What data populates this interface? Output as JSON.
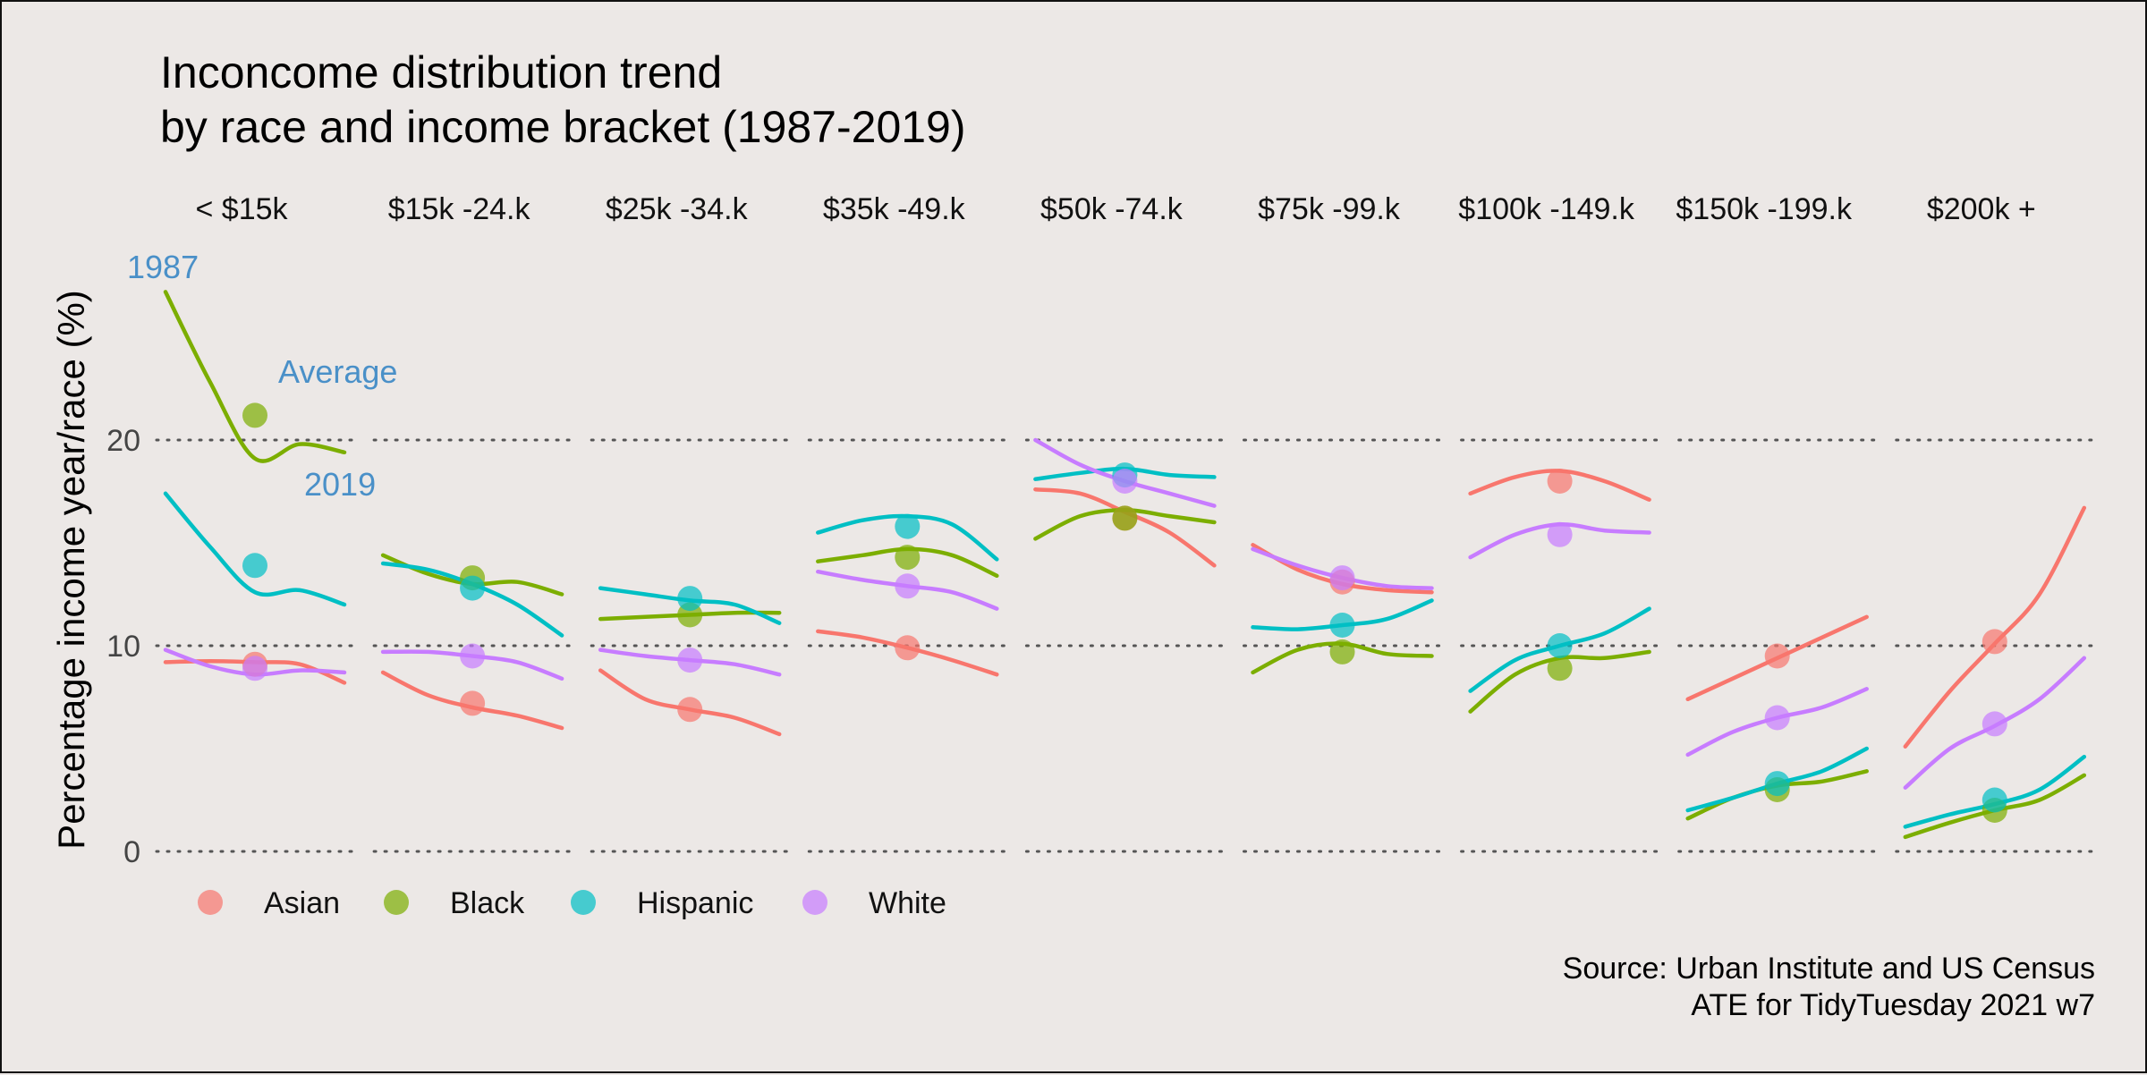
{
  "chart_data": {
    "type": "line",
    "title_line1": "Inconcome distribution trend",
    "title_line2": "by race and income bracket (1987-2019)",
    "ylabel": "Percentage income year/race (%)",
    "ylim": [
      0,
      28
    ],
    "yticks": [
      "0",
      "10",
      "20"
    ],
    "ytick_values": [
      0,
      10,
      20
    ],
    "grid": "dotted horizontal at 0, 10, 20",
    "legend_position": "bottom-left",
    "caption_line1": "Source: Urban Institute and US Census",
    "caption_line2": "ATE for TidyTuesday 2021 w7",
    "annotations": {
      "start": "1987",
      "mean": "Average",
      "end": "2019"
    },
    "x_domain": [
      1987,
      2019
    ],
    "colors": {
      "Asian": "#F8766D",
      "Black": "#7CAE00",
      "Hispanic": "#00BFC4",
      "White": "#C77CFF"
    },
    "series_names": [
      "Asian",
      "Black",
      "Hispanic",
      "White"
    ],
    "facets": [
      {
        "label": "< $15k",
        "series": [
          {
            "name": "Asian",
            "average": 9.1,
            "line": [
              9.2,
              9.25,
              9.2,
              9.1,
              8.2
            ]
          },
          {
            "name": "Black",
            "average": 21.2,
            "line": [
              27.2,
              22.8,
              19.1,
              19.8,
              19.4
            ]
          },
          {
            "name": "Hispanic",
            "average": 13.9,
            "line": [
              17.4,
              14.8,
              12.6,
              12.7,
              12.0
            ]
          },
          {
            "name": "White",
            "average": 8.9,
            "line": [
              9.8,
              9.0,
              8.6,
              8.8,
              8.7
            ]
          }
        ]
      },
      {
        "label": "$15k -24.k",
        "series": [
          {
            "name": "Asian",
            "average": 7.2,
            "line": [
              8.7,
              7.6,
              7.0,
              6.6,
              6.0
            ]
          },
          {
            "name": "Black",
            "average": 13.3,
            "line": [
              14.4,
              13.5,
              13.0,
              13.1,
              12.5
            ]
          },
          {
            "name": "Hispanic",
            "average": 12.8,
            "line": [
              14.0,
              13.7,
              13.0,
              12.0,
              10.5
            ]
          },
          {
            "name": "White",
            "average": 9.5,
            "line": [
              9.7,
              9.7,
              9.5,
              9.2,
              8.4
            ]
          }
        ]
      },
      {
        "label": "$25k -34.k",
        "series": [
          {
            "name": "Asian",
            "average": 6.9,
            "line": [
              8.8,
              7.4,
              6.9,
              6.5,
              5.7
            ]
          },
          {
            "name": "Black",
            "average": 11.5,
            "line": [
              11.3,
              11.4,
              11.5,
              11.6,
              11.6
            ]
          },
          {
            "name": "Hispanic",
            "average": 12.3,
            "line": [
              12.8,
              12.5,
              12.2,
              12.0,
              11.1
            ]
          },
          {
            "name": "White",
            "average": 9.3,
            "line": [
              9.8,
              9.5,
              9.3,
              9.1,
              8.6
            ]
          }
        ]
      },
      {
        "label": "$35k -49.k",
        "series": [
          {
            "name": "Asian",
            "average": 9.9,
            "line": [
              10.7,
              10.4,
              9.9,
              9.3,
              8.6
            ]
          },
          {
            "name": "Black",
            "average": 14.3,
            "line": [
              14.1,
              14.4,
              14.7,
              14.4,
              13.4
            ]
          },
          {
            "name": "Hispanic",
            "average": 15.8,
            "line": [
              15.5,
              16.1,
              16.3,
              15.9,
              14.2
            ]
          },
          {
            "name": "White",
            "average": 12.9,
            "line": [
              13.6,
              13.2,
              12.9,
              12.6,
              11.8
            ]
          }
        ]
      },
      {
        "label": "$50k -74.k",
        "series": [
          {
            "name": "Asian",
            "average": 16.2,
            "line": [
              17.6,
              17.4,
              16.5,
              15.5,
              13.9
            ]
          },
          {
            "name": "Black",
            "average": 16.2,
            "line": [
              15.2,
              16.3,
              16.6,
              16.3,
              16.0
            ]
          },
          {
            "name": "Hispanic",
            "average": 18.3,
            "line": [
              18.1,
              18.4,
              18.6,
              18.3,
              18.2
            ]
          },
          {
            "name": "White",
            "average": 18.0,
            "line": [
              20.0,
              18.8,
              18.0,
              17.4,
              16.8
            ]
          }
        ]
      },
      {
        "label": "$75k -99.k",
        "series": [
          {
            "name": "Asian",
            "average": 13.1,
            "line": [
              14.9,
              13.7,
              13.0,
              12.7,
              12.6
            ]
          },
          {
            "name": "Black",
            "average": 9.7,
            "line": [
              8.7,
              9.8,
              10.1,
              9.6,
              9.5
            ]
          },
          {
            "name": "Hispanic",
            "average": 11.0,
            "line": [
              10.9,
              10.8,
              11.0,
              11.3,
              12.2
            ]
          },
          {
            "name": "White",
            "average": 13.3,
            "line": [
              14.7,
              13.9,
              13.3,
              12.9,
              12.8
            ]
          }
        ]
      },
      {
        "label": "$100k -149.k",
        "series": [
          {
            "name": "Asian",
            "average": 18.0,
            "line": [
              17.4,
              18.2,
              18.5,
              18.0,
              17.1
            ]
          },
          {
            "name": "Black",
            "average": 8.9,
            "line": [
              6.8,
              8.6,
              9.4,
              9.4,
              9.7
            ]
          },
          {
            "name": "Hispanic",
            "average": 10.0,
            "line": [
              7.8,
              9.3,
              10.0,
              10.6,
              11.8
            ]
          },
          {
            "name": "White",
            "average": 15.4,
            "line": [
              14.3,
              15.4,
              15.9,
              15.6,
              15.5
            ]
          }
        ]
      },
      {
        "label": "$150k -199.k",
        "series": [
          {
            "name": "Asian",
            "average": 9.5,
            "line": [
              7.4,
              8.4,
              9.4,
              10.4,
              11.4
            ]
          },
          {
            "name": "Black",
            "average": 3.0,
            "line": [
              1.6,
              2.6,
              3.2,
              3.4,
              3.9
            ]
          },
          {
            "name": "Hispanic",
            "average": 3.3,
            "line": [
              2.0,
              2.6,
              3.3,
              3.9,
              5.0
            ]
          },
          {
            "name": "White",
            "average": 6.5,
            "line": [
              4.7,
              5.8,
              6.5,
              7.0,
              7.9
            ]
          }
        ]
      },
      {
        "label": "$200k +",
        "series": [
          {
            "name": "Asian",
            "average": 10.2,
            "line": [
              5.1,
              7.8,
              10.1,
              12.5,
              16.7
            ]
          },
          {
            "name": "Black",
            "average": 2.0,
            "line": [
              0.7,
              1.4,
              2.0,
              2.5,
              3.7
            ]
          },
          {
            "name": "Hispanic",
            "average": 2.5,
            "line": [
              1.2,
              1.8,
              2.3,
              3.0,
              4.6
            ]
          },
          {
            "name": "White",
            "average": 6.2,
            "line": [
              3.1,
              5.0,
              6.1,
              7.4,
              9.4
            ]
          }
        ]
      }
    ]
  }
}
